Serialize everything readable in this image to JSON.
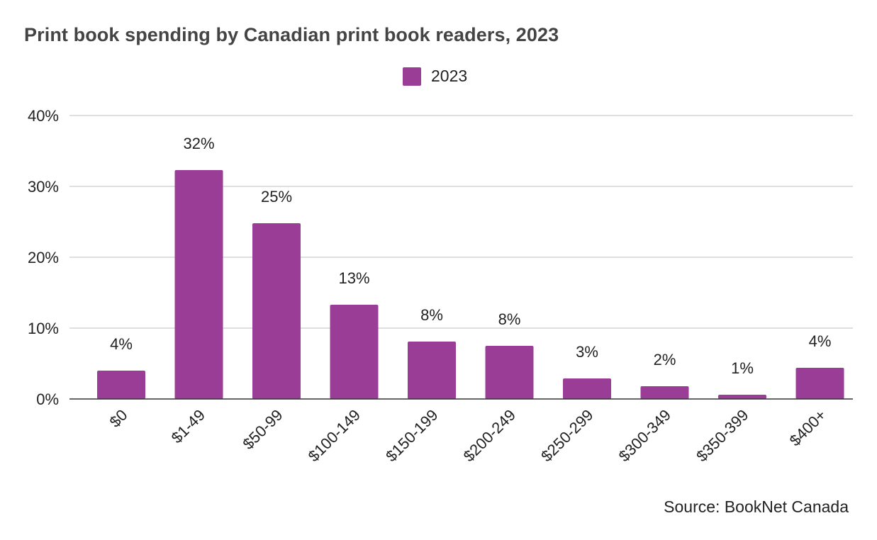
{
  "chart_data": {
    "type": "bar",
    "title": "Print book spending by Canadian print book readers, 2023",
    "categories": [
      "$0",
      "$1-49",
      "$50-99",
      "$100-149",
      "$150-199",
      "$200-249",
      "$250-299",
      "$300-349",
      "$350-399",
      "$400+"
    ],
    "series": [
      {
        "name": "2023",
        "values": [
          4,
          32.3,
          24.8,
          13.3,
          8.1,
          7.5,
          2.9,
          1.8,
          0.6,
          4.4
        ],
        "labels": [
          "4%",
          "32%",
          "25%",
          "13%",
          "8%",
          "8%",
          "3%",
          "2%",
          "1%",
          "4%"
        ],
        "color": "#993d97"
      }
    ],
    "y_ticks": [
      "0%",
      "10%",
      "20%",
      "30%",
      "40%"
    ],
    "ylim": [
      0,
      40
    ],
    "grid": true,
    "legend_position": "top-center",
    "xlabel": "",
    "ylabel": ""
  },
  "source": "Source: BookNet Canada"
}
